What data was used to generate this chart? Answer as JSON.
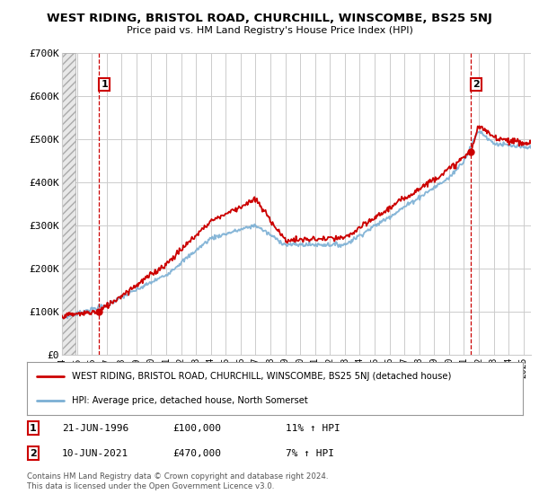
{
  "title": "WEST RIDING, BRISTOL ROAD, CHURCHILL, WINSCOMBE, BS25 5NJ",
  "subtitle": "Price paid vs. HM Land Registry's House Price Index (HPI)",
  "ylim": [
    0,
    700000
  ],
  "yticks": [
    0,
    100000,
    200000,
    300000,
    400000,
    500000,
    600000,
    700000
  ],
  "ytick_labels": [
    "£0",
    "£100K",
    "£200K",
    "£300K",
    "£400K",
    "£500K",
    "£600K",
    "£700K"
  ],
  "line1_color": "#cc0000",
  "line2_color": "#7bafd4",
  "purchase1_date": 1996.47,
  "purchase1_price": 100000,
  "purchase2_date": 2021.44,
  "purchase2_price": 470000,
  "legend_line1": "WEST RIDING, BRISTOL ROAD, CHURCHILL, WINSCOMBE, BS25 5NJ (detached house)",
  "legend_line2": "HPI: Average price, detached house, North Somerset",
  "note1_label": "1",
  "note1_date": "21-JUN-1996",
  "note1_price": "£100,000",
  "note1_hpi": "11% ↑ HPI",
  "note2_label": "2",
  "note2_date": "10-JUN-2021",
  "note2_price": "£470,000",
  "note2_hpi": "7% ↑ HPI",
  "footer": "Contains HM Land Registry data © Crown copyright and database right 2024.\nThis data is licensed under the Open Government Licence v3.0.",
  "grid_color": "#cccccc",
  "xmin": 1994.0,
  "xmax": 2025.5
}
